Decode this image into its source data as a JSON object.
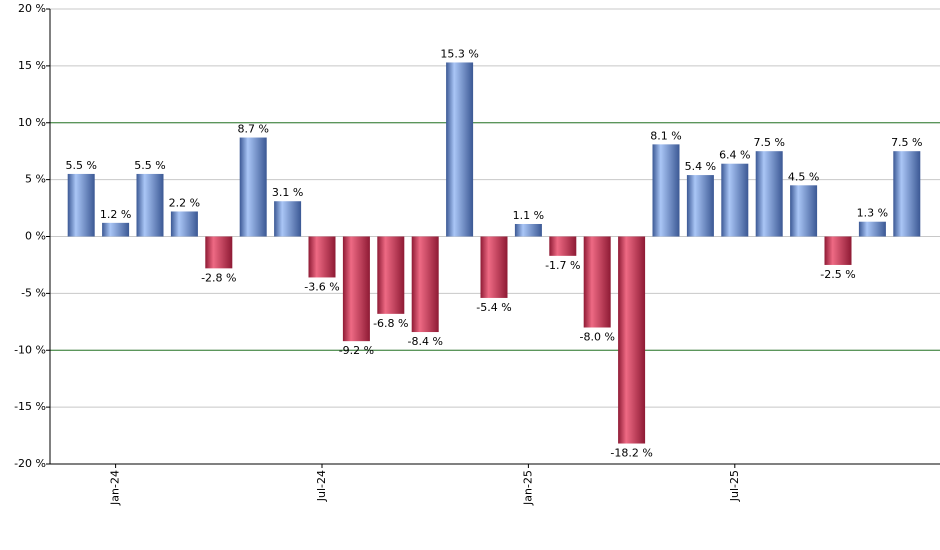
{
  "chart_data": {
    "type": "bar",
    "categories": [
      null,
      "Jan-24",
      null,
      null,
      null,
      null,
      null,
      "Jul-24",
      null,
      null,
      null,
      null,
      null,
      "Jan-25",
      null,
      null,
      null,
      null,
      null,
      "Jul-25",
      null,
      null,
      null,
      null,
      null
    ],
    "values": [
      5.5,
      1.2,
      5.5,
      2.2,
      -2.8,
      8.7,
      3.1,
      -3.6,
      -9.2,
      -6.8,
      -8.4,
      15.3,
      -5.4,
      1.1,
      -1.7,
      -8.0,
      -18.2,
      8.1,
      5.4,
      6.4,
      7.5,
      4.5,
      -2.5,
      1.3,
      7.5
    ],
    "value_labels": [
      "5.5 %",
      "1.2 %",
      "5.5 %",
      "2.2 %",
      "-2.8 %",
      "8.7 %",
      "3.1 %",
      "-3.6 %",
      "-9.2 %",
      "-6.8 %",
      "-8.4 %",
      "15.3 %",
      "-5.4 %",
      "1.1 %",
      "-1.7 %",
      "-8.0 %",
      "-18.2 %",
      "8.1 %",
      "5.4 %",
      "6.4 %",
      "7.5 %",
      "4.5 %",
      "-2.5 %",
      "1.3 %",
      "7.5 %"
    ],
    "positive_colors": [
      "#3b5894",
      "#aac6f6"
    ],
    "negative_colors": [
      "#8e1a34",
      "#ee6a84"
    ],
    "ylim": [
      -20,
      20
    ],
    "yticks": [
      {
        "value": -20,
        "label": "-20 %"
      },
      {
        "value": -15,
        "label": "-15 %"
      },
      {
        "value": -10,
        "label": "-10 %"
      },
      {
        "value": -5,
        "label": "-5 %"
      },
      {
        "value": 0,
        "label": "0 %"
      },
      {
        "value": 5,
        "label": "5 %"
      },
      {
        "value": 10,
        "label": "10 %"
      },
      {
        "value": 15,
        "label": "15 %"
      },
      {
        "value": 20,
        "label": "20 %"
      }
    ],
    "reference_lines": [
      -10,
      10
    ],
    "reference_color": "#2e7d2e",
    "grid": true
  }
}
